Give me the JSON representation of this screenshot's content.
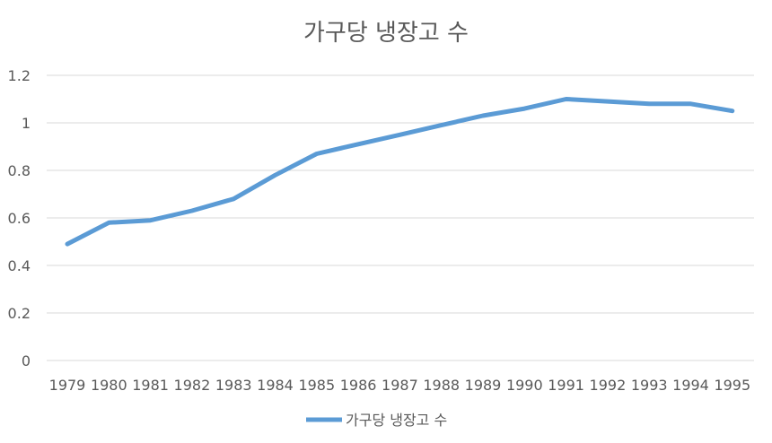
{
  "chart_data": {
    "type": "line",
    "title": "가구당 냉장고 수",
    "xlabel": "",
    "ylabel": "",
    "ylim": [
      0,
      1.2
    ],
    "yticks": [
      "0",
      "0.2",
      "0.4",
      "0.6",
      "0.8",
      "1",
      "1.2"
    ],
    "categories": [
      "1979",
      "1980",
      "1981",
      "1982",
      "1983",
      "1984",
      "1985",
      "1986",
      "1987",
      "1988",
      "1989",
      "1990",
      "1991",
      "1992",
      "1993",
      "1994",
      "1995"
    ],
    "series": [
      {
        "name": "가구당 냉장고 수",
        "color": "#5b9bd5",
        "values": [
          0.49,
          0.58,
          0.59,
          0.63,
          0.68,
          0.78,
          0.87,
          0.91,
          0.95,
          0.99,
          1.03,
          1.06,
          1.1,
          1.09,
          1.08,
          1.08,
          1.05
        ]
      }
    ],
    "grid": true,
    "legend": "bottom"
  }
}
